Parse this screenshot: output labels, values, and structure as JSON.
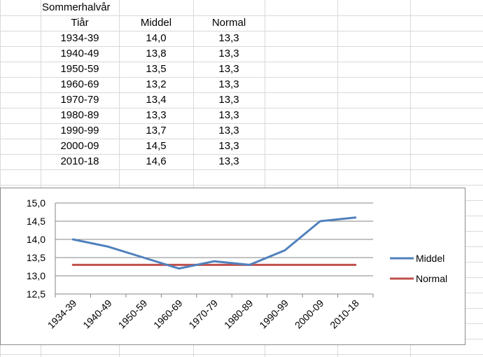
{
  "table": {
    "title": "Sommerhalvår",
    "headers": [
      "Tiår",
      "Middel",
      "Normal"
    ],
    "rows": [
      [
        "1934-39",
        "14,0",
        "13,3"
      ],
      [
        "1940-49",
        "13,8",
        "13,3"
      ],
      [
        "1950-59",
        "13,5",
        "13,3"
      ],
      [
        "1960-69",
        "13,2",
        "13,3"
      ],
      [
        "1970-79",
        "13,4",
        "13,3"
      ],
      [
        "1980-89",
        "13,3",
        "13,3"
      ],
      [
        "1990-99",
        "13,7",
        "13,3"
      ],
      [
        "2000-09",
        "14,5",
        "13,3"
      ],
      [
        "2010-18",
        "14,6",
        "13,3"
      ]
    ]
  },
  "chart_data": {
    "type": "line",
    "categories": [
      "1934-39",
      "1940-49",
      "1950-59",
      "1960-69",
      "1970-79",
      "1980-89",
      "1990-99",
      "2000-09",
      "2010-18"
    ],
    "series": [
      {
        "name": "Middel",
        "color": "#4f81bd",
        "values": [
          14.0,
          13.8,
          13.5,
          13.2,
          13.4,
          13.3,
          13.7,
          14.5,
          14.6
        ]
      },
      {
        "name": "Normal",
        "color": "#c0504d",
        "values": [
          13.3,
          13.3,
          13.3,
          13.3,
          13.3,
          13.3,
          13.3,
          13.3,
          13.3
        ]
      }
    ],
    "yticks": [
      "15,0",
      "14,5",
      "14,0",
      "13,5",
      "13,0",
      "12,5"
    ],
    "ylim": [
      12.5,
      15.0
    ],
    "grid": true,
    "legend": "right"
  }
}
